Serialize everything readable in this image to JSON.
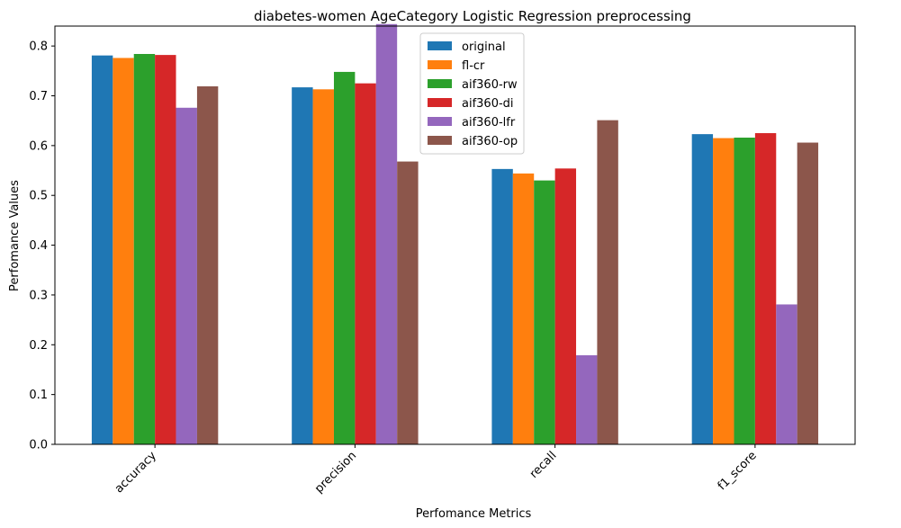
{
  "chart_data": {
    "type": "bar",
    "title": "diabetes-women AgeCategory Logistic Regression preprocessing",
    "xlabel": "Perfomance Metrics",
    "ylabel": "Perfomance Values",
    "categories": [
      "accuracy",
      "precision",
      "recall",
      "f1_score"
    ],
    "ylim": [
      0,
      0.84
    ],
    "yticks": [
      "0.0",
      "0.1",
      "0.2",
      "0.3",
      "0.4",
      "0.5",
      "0.6",
      "0.7",
      "0.8"
    ],
    "legend_position": "top-center",
    "grid": false,
    "series": [
      {
        "name": "original",
        "color": "#1f77b4",
        "values": [
          0.781,
          0.717,
          0.553,
          0.623
        ]
      },
      {
        "name": "fl-cr",
        "color": "#ff7f0e",
        "values": [
          0.776,
          0.713,
          0.544,
          0.615
        ]
      },
      {
        "name": "aif360-rw",
        "color": "#2ca02c",
        "values": [
          0.784,
          0.748,
          0.53,
          0.616
        ]
      },
      {
        "name": "aif360-di",
        "color": "#d62728",
        "values": [
          0.782,
          0.725,
          0.554,
          0.625
        ]
      },
      {
        "name": "aif360-lfr",
        "color": "#9467bd",
        "values": [
          0.676,
          0.844,
          0.179,
          0.281
        ]
      },
      {
        "name": "aif360-op",
        "color": "#8c564b",
        "values": [
          0.719,
          0.568,
          0.651,
          0.606
        ]
      }
    ]
  }
}
